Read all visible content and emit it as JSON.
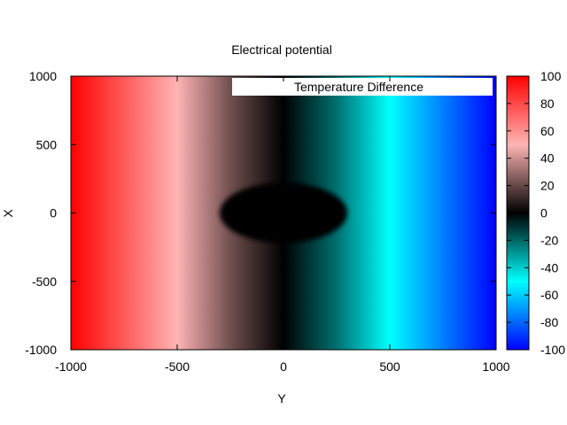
{
  "chart_data": {
    "type": "heatmap",
    "title": "Electrical potential",
    "xlabel": "Y",
    "ylabel": "X",
    "xlim": [
      -1000,
      1000
    ],
    "ylim": [
      -1000,
      1000
    ],
    "x_ticks": [
      "-1000",
      "-500",
      "0",
      "500",
      "1000"
    ],
    "y_ticks": [
      "1000",
      "500",
      "0",
      "-500",
      "-1000"
    ],
    "colorbar": {
      "range": [
        -100,
        100
      ],
      "ticks": [
        "100",
        "80",
        "60",
        "40",
        "20",
        "0",
        "-20",
        "-40",
        "-60",
        "-80",
        "-100"
      ],
      "palette_stops": [
        {
          "value": -100,
          "color": "#0000ff"
        },
        {
          "value": -50,
          "color": "#00ffff"
        },
        {
          "value": 0,
          "color": "#000000"
        },
        {
          "value": 50,
          "color": "#ffb4b4"
        },
        {
          "value": 100,
          "color": "#ff0000"
        }
      ]
    },
    "legend": {
      "label": "Temperature Difference",
      "position": "top-right"
    },
    "field_samples": [
      {
        "y": -1000,
        "value": 100
      },
      {
        "y": -500,
        "value": 50
      },
      {
        "y": -250,
        "value": 22
      },
      {
        "y": 0,
        "value": 0
      },
      {
        "y": 250,
        "value": -22
      },
      {
        "y": 500,
        "value": -50
      },
      {
        "y": 1000,
        "value": -100
      }
    ],
    "zero_region": {
      "center": [
        0,
        0
      ],
      "semi_axis_y": 300,
      "semi_axis_x": 220,
      "value": 0
    },
    "grid": false
  }
}
